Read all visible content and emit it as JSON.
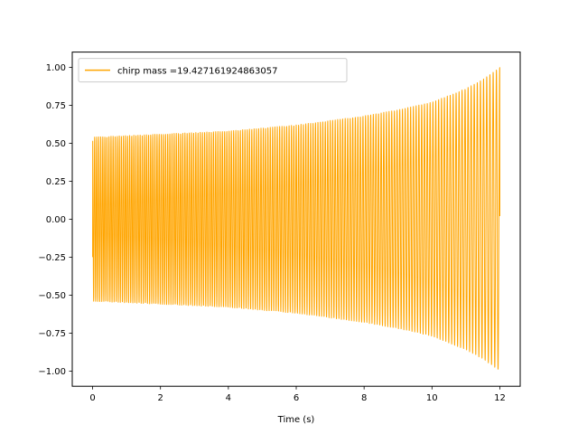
{
  "chart_data": {
    "type": "line",
    "title": "",
    "xlabel": "Time (s)",
    "ylabel": "",
    "xlim": [
      -0.6,
      12.6
    ],
    "ylim": [
      -1.1,
      1.1
    ],
    "xticks": [
      0,
      2,
      4,
      6,
      8,
      10,
      12
    ],
    "yticks": [
      -1.0,
      -0.75,
      -0.5,
      -0.25,
      0.0,
      0.25,
      0.5,
      0.75,
      1.0
    ],
    "xtick_labels": [
      "0",
      "2",
      "4",
      "6",
      "8",
      "10",
      "12"
    ],
    "ytick_labels": [
      "−1.00",
      "−0.75",
      "−0.50",
      "−0.25",
      "0.00",
      "0.25",
      "0.50",
      "0.75",
      "1.00"
    ],
    "grid": false,
    "legend_position": "upper-left",
    "series": [
      {
        "name": "chirp mass =19.427161924863057",
        "color": "#ffa500",
        "description_of_signal": "chirp",
        "t_start": 0.0,
        "t_end": 12.0,
        "x": [
          0,
          1,
          2,
          3,
          4,
          5,
          6,
          7,
          8,
          9,
          10,
          11,
          11.5,
          12
        ],
        "envelope": [
          0.54,
          0.55,
          0.56,
          0.57,
          0.58,
          0.6,
          0.62,
          0.65,
          0.68,
          0.72,
          0.77,
          0.86,
          0.92,
          1.0
        ],
        "start_value": -0.25,
        "end_value": 0.02
      }
    ]
  }
}
